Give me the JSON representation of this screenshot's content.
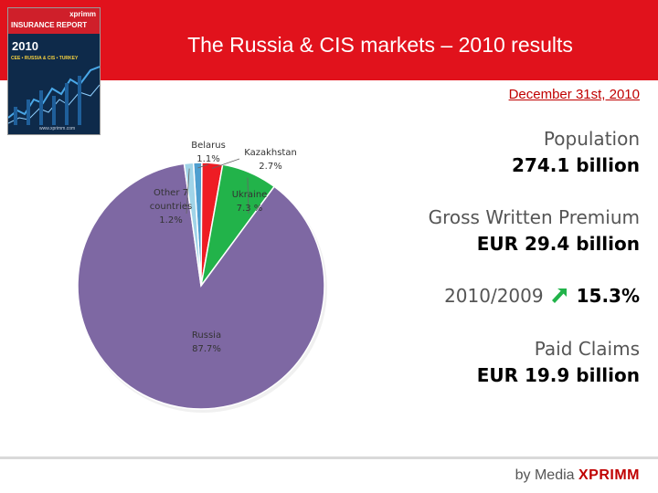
{
  "header": {
    "title": "The Russia & CIS markets – 2010 results",
    "accent_color": "#e1121c"
  },
  "cover": {
    "brand": "xprimm",
    "title": "INSURANCE REPORT",
    "year": "2010",
    "subtitle": "CEE • RUSSIA & CIS • TURKEY",
    "url": "www.xprimm.com"
  },
  "date": "December 31st, 2010",
  "chart_data": {
    "type": "pie",
    "title": "",
    "unit": "%",
    "slices": [
      {
        "name": "Belarus",
        "label": "1.1%",
        "value": 1.1,
        "color": "#4e9fd0"
      },
      {
        "name": "Kazakhstan",
        "label": "2.7%",
        "value": 2.7,
        "color": "#ee1c24"
      },
      {
        "name": "Ukraine",
        "label": "7.3 %",
        "value": 7.3,
        "color": "#22b34a"
      },
      {
        "name": "Russia",
        "label": "87.7%",
        "value": 87.7,
        "color": "#7e68a3"
      },
      {
        "name": "Other 7 countries",
        "label": "1.2%",
        "value": 1.2,
        "color": "#a0d4e8"
      }
    ]
  },
  "stats": {
    "population_label": "Population",
    "population_value": "274.1 billion",
    "gwp_label": "Gross Written Premium",
    "gwp_value": "EUR 29.4 billion",
    "growth_period": "2010/2009",
    "growth_value": "15.3%",
    "growth_icon": "arrow-up-right-icon",
    "growth_color": "#22b34a",
    "claims_label": "Paid Claims",
    "claims_value": "EUR 19.9 billion"
  },
  "footer": {
    "by": "by Media",
    "brand": "XPRIMM"
  }
}
